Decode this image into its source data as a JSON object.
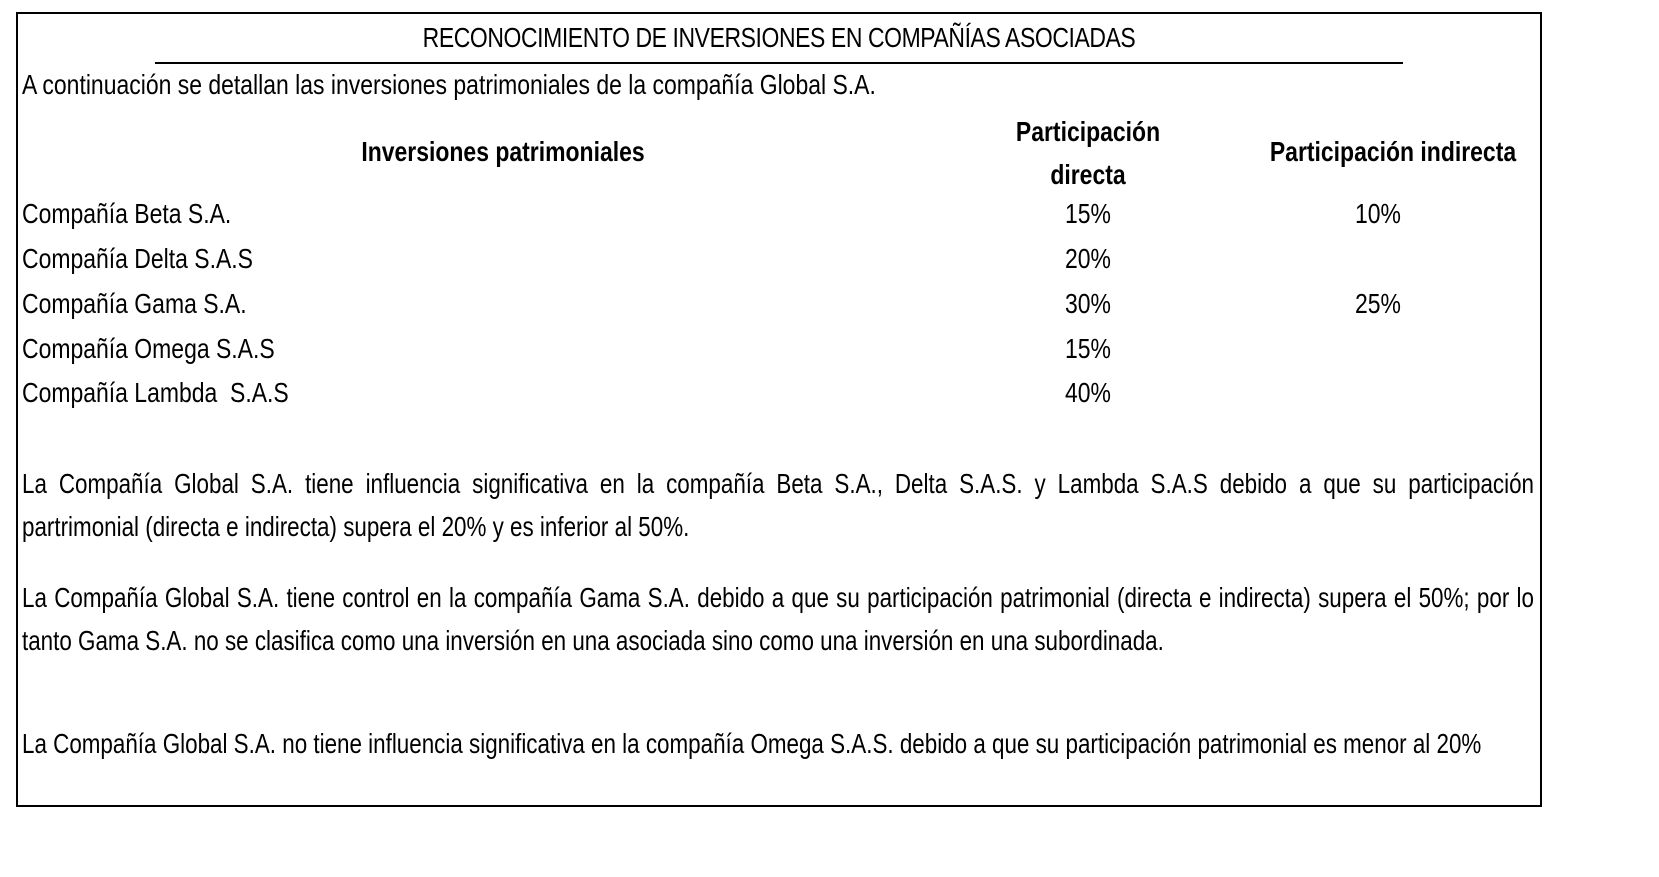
{
  "document": {
    "title": "RECONOCIMIENTO DE INVERSIONES EN COMPAÑÍAS ASOCIADAS",
    "intro": "A continuación se detallan las inversiones patrimoniales de la compañía Global S.A."
  },
  "table": {
    "headers": {
      "investments": "Inversiones patrimoniales",
      "direct": "Participación directa",
      "indirect": "Participación indirecta"
    },
    "rows": [
      {
        "name": "Compañía Beta S.A.",
        "direct": "15%",
        "indirect": "10%"
      },
      {
        "name": "Compañía Delta S.A.S",
        "direct": "20%",
        "indirect": ""
      },
      {
        "name": "Compañía Gama S.A.",
        "direct": "30%",
        "indirect": "25%"
      },
      {
        "name": "Compañía Omega S.A.S",
        "direct": "15%",
        "indirect": ""
      },
      {
        "name": "Compañía Lambda  S.A.S",
        "direct": "40%",
        "indirect": ""
      }
    ]
  },
  "paragraphs": [
    "La Compañía Global S.A. tiene influencia significativa en la compañía Beta S.A., Delta S.A.S. y Lambda S.A.S debido a que su participación partrimonial (directa e indirecta) supera el 20% y es inferior al 50%.",
    "La Compañía Global S.A. tiene control en la compañía Gama S.A. debido a que su participación patrimonial (directa e indirecta) supera el 50%; por lo tanto Gama S.A. no se clasifica como una inversión en una asociada sino como una inversión en una subordinada.",
    "La Compañía Global S.A. no tiene influencia significativa en la compañía Omega S.A.S. debido a que su participación patrimonial es menor al 20%"
  ]
}
